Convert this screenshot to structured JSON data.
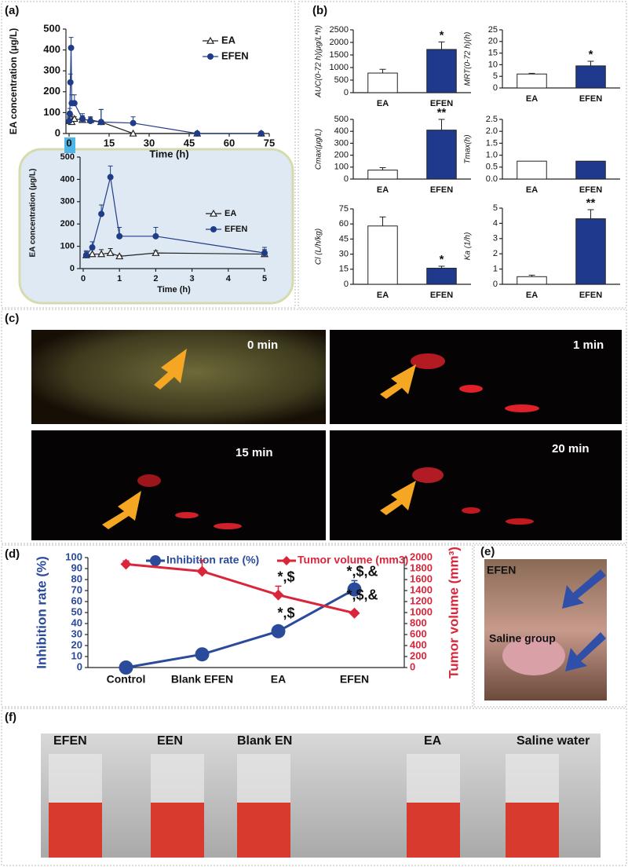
{
  "figure": {
    "panel_labels": [
      "(a)",
      "(b)",
      "(c)",
      "(d)",
      "(e)",
      "(f)"
    ],
    "imaging_times": [
      "0 min",
      "1 min",
      "15 min",
      "20 min"
    ],
    "tumor_photo_labels": [
      "EFEN",
      "Saline group"
    ],
    "tube_labels": [
      "EFEN",
      "EEN",
      "Blank EN",
      "EA",
      "Saline water"
    ]
  },
  "chart_data": [
    {
      "type": "line",
      "x_label": "Time (h)",
      "y_label": "EA concentration (μg/L)",
      "x": [
        0.083,
        0.25,
        0.5,
        0.75,
        1,
        2,
        5,
        8,
        12,
        24,
        48,
        72
      ],
      "xlim": [
        0,
        75
      ],
      "xticks": [
        0,
        15,
        30,
        45,
        60,
        75
      ],
      "ylim": [
        0,
        500
      ],
      "yticks": [
        0,
        100,
        200,
        300,
        400,
        500
      ],
      "series": [
        {
          "name": "EA",
          "color": "#222222",
          "marker": "triangle",
          "values": [
            60,
            65,
            65,
            70,
            55,
            70,
            65,
            65,
            55,
            0,
            0,
            0
          ],
          "errors": [
            15,
            20,
            20,
            20,
            5,
            10,
            20,
            10,
            60,
            null,
            null,
            null
          ]
        },
        {
          "name": "EFEN",
          "color": "#1f3c88",
          "marker": "circle",
          "values": [
            60,
            95,
            245,
            410,
            145,
            145,
            70,
            60,
            55,
            50,
            0,
            0
          ],
          "errors": [
            20,
            25,
            40,
            50,
            40,
            40,
            25,
            20,
            60,
            30,
            null,
            null
          ]
        }
      ]
    },
    {
      "type": "line",
      "x_label": "Time (h)",
      "y_label": "EA concentration (μg/L)",
      "x": [
        0.083,
        0.25,
        0.5,
        0.75,
        1,
        2,
        5
      ],
      "xlim": [
        0,
        5
      ],
      "xticks": [
        0,
        1,
        2,
        3,
        4,
        5
      ],
      "ylim": [
        0,
        500
      ],
      "yticks": [
        0,
        100,
        200,
        300,
        400,
        500
      ],
      "series": [
        {
          "name": "EA",
          "color": "#222222",
          "marker": "triangle",
          "values": [
            60,
            65,
            65,
            70,
            55,
            70,
            65
          ],
          "errors": [
            15,
            20,
            20,
            20,
            5,
            10,
            20
          ]
        },
        {
          "name": "EFEN",
          "color": "#1f3c88",
          "marker": "circle",
          "values": [
            60,
            95,
            245,
            410,
            145,
            145,
            70
          ],
          "errors": [
            20,
            25,
            40,
            50,
            40,
            40,
            25
          ]
        }
      ]
    },
    {
      "type": "bar",
      "y_label": "AUC(0-72 h)(μg/L*h)",
      "categories": [
        "EA",
        "EFEN"
      ],
      "values": [
        780,
        1720
      ],
      "errors": [
        150,
        300
      ],
      "colors": [
        "#ffffff",
        "#1f3a8c"
      ],
      "annotations": [
        null,
        "*"
      ],
      "ylim": [
        0,
        2500
      ],
      "yticks": [
        0,
        500,
        1000,
        1500,
        2000,
        2500
      ]
    },
    {
      "type": "bar",
      "y_label": "MRT(0-72 h)(h)",
      "categories": [
        "EA",
        "EFEN"
      ],
      "values": [
        6,
        9.5
      ],
      "errors": [
        0.3,
        2
      ],
      "colors": [
        "#ffffff",
        "#1f3a8c"
      ],
      "annotations": [
        null,
        "*"
      ],
      "ylim": [
        0,
        25
      ],
      "yticks": [
        0,
        5,
        10,
        15,
        20,
        25
      ]
    },
    {
      "type": "bar",
      "y_label": "Cmax(μg/L)",
      "categories": [
        "EA",
        "EFEN"
      ],
      "values": [
        75,
        410
      ],
      "errors": [
        20,
        90
      ],
      "colors": [
        "#ffffff",
        "#1f3a8c"
      ],
      "annotations": [
        null,
        "**"
      ],
      "ylim": [
        0,
        500
      ],
      "yticks": [
        0,
        100,
        200,
        300,
        400,
        500
      ]
    },
    {
      "type": "bar",
      "y_label": "Tmax(h)",
      "categories": [
        "EA",
        "EFEN"
      ],
      "values": [
        0.75,
        0.75
      ],
      "colors": [
        "#ffffff",
        "#1f3a8c"
      ],
      "ylim": [
        0,
        2.5
      ],
      "yticks": [
        {
          "value": 0,
          "label": "0.0"
        },
        {
          "value": 0.5,
          "label": "0.5"
        },
        {
          "value": 1,
          "label": "1.0"
        },
        {
          "value": 1.5,
          "label": "1.5"
        },
        {
          "value": 2,
          "label": "2.0"
        },
        {
          "value": 2.5,
          "label": "2.5"
        }
      ]
    },
    {
      "type": "bar",
      "y_label": "Cl (L/h/kg)",
      "categories": [
        "EA",
        "EFEN"
      ],
      "values": [
        58,
        16
      ],
      "errors": [
        9,
        2
      ],
      "colors": [
        "#ffffff",
        "#1f3a8c"
      ],
      "annotations": [
        null,
        "*"
      ],
      "ylim": [
        0,
        75
      ],
      "yticks": [
        0,
        15,
        30,
        45,
        60,
        75
      ]
    },
    {
      "type": "bar",
      "y_label": "Ka (1/h)",
      "categories": [
        "EA",
        "EFEN"
      ],
      "values": [
        0.5,
        4.3
      ],
      "errors": [
        0.1,
        0.6
      ],
      "colors": [
        "#ffffff",
        "#1f3a8c"
      ],
      "annotations": [
        null,
        "**"
      ],
      "ylim": [
        0,
        5
      ],
      "yticks": [
        0,
        1,
        2,
        3,
        4,
        5
      ]
    },
    {
      "type": "dual_line",
      "categories": [
        "Control",
        "Blank EFEN",
        "EA",
        "EFEN"
      ],
      "y_label": "Inhibition rate (%)",
      "y2_label": "Tumor volume (mm³)",
      "ylim": [
        0,
        100
      ],
      "yticks": [
        0,
        10,
        20,
        30,
        40,
        50,
        60,
        70,
        80,
        90,
        100
      ],
      "y2lim": [
        0,
        2000
      ],
      "y2ticks": [
        0,
        200,
        400,
        600,
        800,
        1000,
        1200,
        1400,
        1600,
        1800,
        2000
      ],
      "series": [
        {
          "name": "Inhibition rate (%)",
          "color": "#2a4a9a",
          "marker": "circle",
          "values": [
            0,
            12,
            33,
            71
          ],
          "errors": [
            null,
            3,
            5,
            8
          ],
          "annotations": [
            null,
            null,
            "*,$",
            "*,$,&"
          ]
        },
        {
          "name": "Tumor volume (mm3)",
          "color": "#d9263a",
          "marker": "diamond",
          "axis": "y2",
          "values": [
            1880,
            1750,
            1320,
            990
          ],
          "errors": [
            60,
            200,
            160,
            40
          ],
          "annotations": [
            null,
            null,
            "*,$",
            "*,$,&"
          ]
        }
      ]
    }
  ]
}
